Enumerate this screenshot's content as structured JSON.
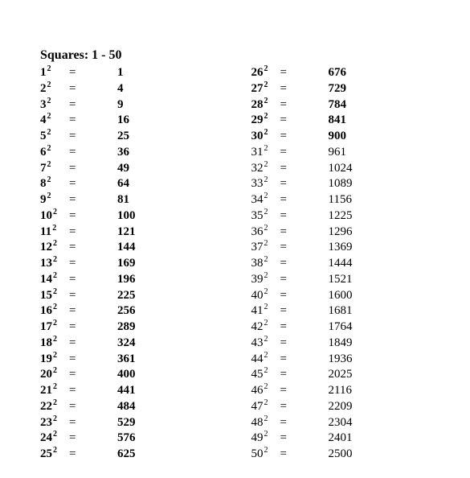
{
  "title": "Squares: 1 - 50",
  "exponent": "2",
  "equals": "=",
  "layout": {
    "columns": 2,
    "rows_per_column": 25
  },
  "typography": {
    "font_family": "Times New Roman",
    "title_fontsize": 16,
    "body_fontsize": 15,
    "superscript_fontsize": 10
  },
  "colors": {
    "background": "#ffffff",
    "text": "#000000"
  },
  "left": [
    {
      "n": "1",
      "v": "1",
      "bold": true
    },
    {
      "n": "2",
      "v": "4",
      "bold": true
    },
    {
      "n": "3",
      "v": "9",
      "bold": true
    },
    {
      "n": "4",
      "v": "16",
      "bold": true
    },
    {
      "n": "5",
      "v": "25",
      "bold": true
    },
    {
      "n": "6",
      "v": "36",
      "bold": true
    },
    {
      "n": "7",
      "v": "49",
      "bold": true
    },
    {
      "n": "8",
      "v": "64",
      "bold": true
    },
    {
      "n": "9",
      "v": "81",
      "bold": true
    },
    {
      "n": "10",
      "v": "100",
      "bold": true
    },
    {
      "n": "11",
      "v": "121",
      "bold": true
    },
    {
      "n": "12",
      "v": "144",
      "bold": true
    },
    {
      "n": "13",
      "v": "169",
      "bold": true
    },
    {
      "n": "14",
      "v": "196",
      "bold": true
    },
    {
      "n": "15",
      "v": "225",
      "bold": true
    },
    {
      "n": "16",
      "v": "256",
      "bold": true
    },
    {
      "n": "17",
      "v": "289",
      "bold": true
    },
    {
      "n": "18",
      "v": "324",
      "bold": true
    },
    {
      "n": "19",
      "v": "361",
      "bold": true
    },
    {
      "n": "20",
      "v": "400",
      "bold": true
    },
    {
      "n": "21",
      "v": "441",
      "bold": true
    },
    {
      "n": "22",
      "v": "484",
      "bold": true
    },
    {
      "n": "23",
      "v": "529",
      "bold": true
    },
    {
      "n": "24",
      "v": "576",
      "bold": true
    },
    {
      "n": "25",
      "v": "625",
      "bold": true
    }
  ],
  "right": [
    {
      "n": "26",
      "v": "676",
      "bold": true
    },
    {
      "n": "27",
      "v": "729",
      "bold": true
    },
    {
      "n": "28",
      "v": "784",
      "bold": true
    },
    {
      "n": "29",
      "v": "841",
      "bold": true
    },
    {
      "n": "30",
      "v": "900",
      "bold": true
    },
    {
      "n": "31",
      "v": "961",
      "bold": false
    },
    {
      "n": "32",
      "v": "1024",
      "bold": false
    },
    {
      "n": "33",
      "v": "1089",
      "bold": false
    },
    {
      "n": "34",
      "v": "1156",
      "bold": false
    },
    {
      "n": "35",
      "v": "1225",
      "bold": false
    },
    {
      "n": "36",
      "v": "1296",
      "bold": false
    },
    {
      "n": "37",
      "v": "1369",
      "bold": false
    },
    {
      "n": "38",
      "v": "1444",
      "bold": false
    },
    {
      "n": "39",
      "v": "1521",
      "bold": false
    },
    {
      "n": "40",
      "v": "1600",
      "bold": false
    },
    {
      "n": "41",
      "v": "1681",
      "bold": false
    },
    {
      "n": "42",
      "v": "1764",
      "bold": false
    },
    {
      "n": "43",
      "v": "1849",
      "bold": false
    },
    {
      "n": "44",
      "v": "1936",
      "bold": false
    },
    {
      "n": "45",
      "v": "2025",
      "bold": false
    },
    {
      "n": "46",
      "v": "2116",
      "bold": false
    },
    {
      "n": "47",
      "v": "2209",
      "bold": false
    },
    {
      "n": "48",
      "v": "2304",
      "bold": false
    },
    {
      "n": "49",
      "v": "2401",
      "bold": false
    },
    {
      "n": "50",
      "v": "2500",
      "bold": false
    }
  ]
}
